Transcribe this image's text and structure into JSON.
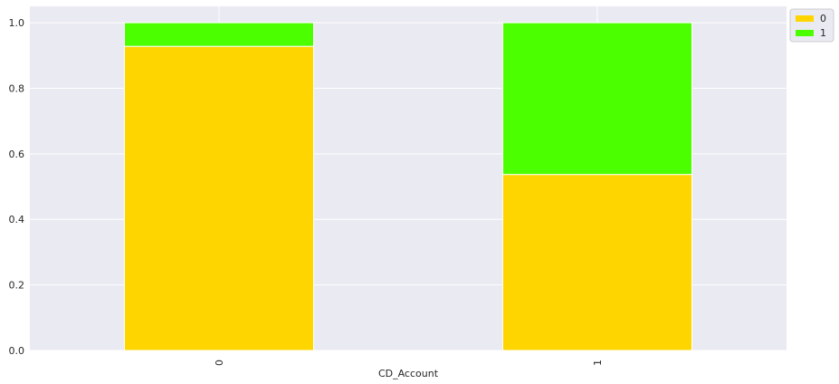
{
  "chart_data": {
    "type": "bar",
    "stacked": true,
    "title": "",
    "xlabel": "CD_Account",
    "ylabel": "",
    "categories": [
      "0",
      "1"
    ],
    "series": [
      {
        "name": "0",
        "values": [
          0.928,
          0.537
        ],
        "color": "#ffd500"
      },
      {
        "name": "1",
        "values": [
          0.072,
          0.463
        ],
        "color": "#4cff00"
      }
    ],
    "ylim": [
      0,
      1.05
    ],
    "yticks": [
      "0.0",
      "0.2",
      "0.4",
      "0.6",
      "0.8",
      "1.0"
    ],
    "grid": true,
    "legend_position": "top-right outside",
    "background": "#eaeaf2"
  }
}
